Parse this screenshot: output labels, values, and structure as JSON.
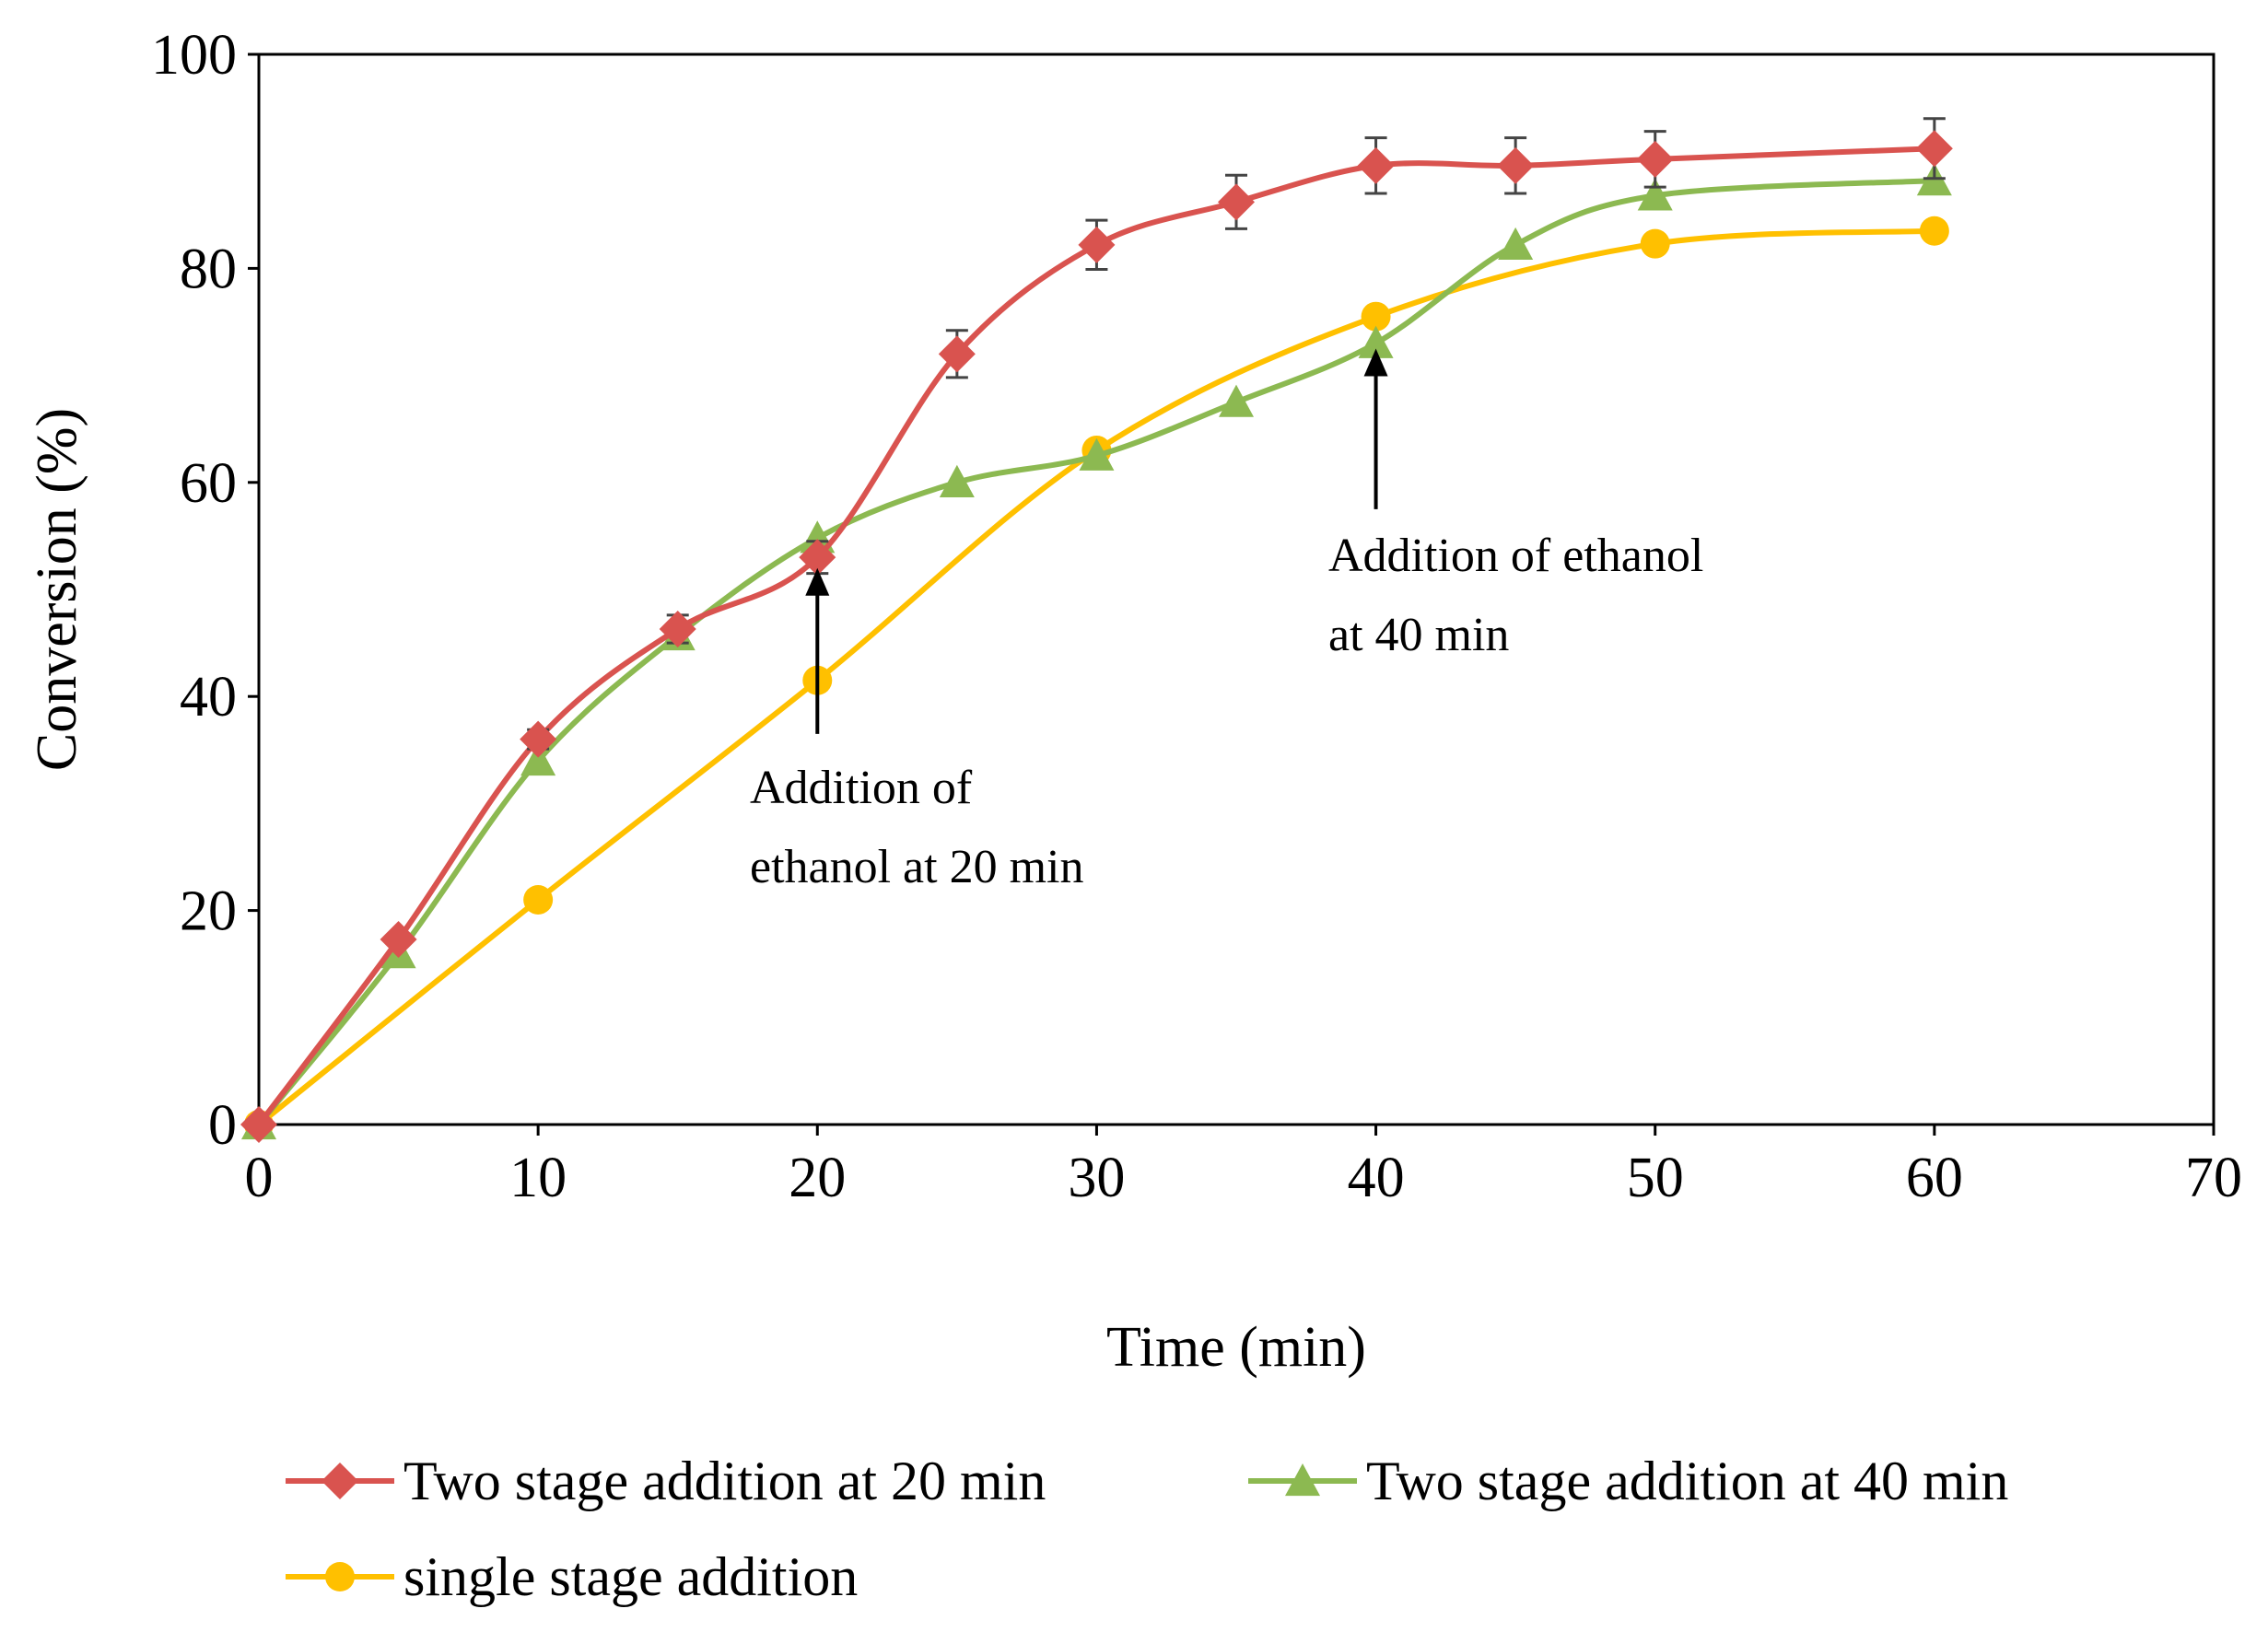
{
  "chart_data": {
    "type": "line",
    "title": "",
    "xlabel": "Time (min)",
    "ylabel": "Conversion (%)",
    "xlim": [
      0,
      70
    ],
    "ylim": [
      0,
      100
    ],
    "xticks": [
      0,
      10,
      20,
      30,
      40,
      50,
      60,
      70
    ],
    "yticks": [
      0,
      20,
      40,
      60,
      80,
      100
    ],
    "grid": false,
    "legend_position": "bottom",
    "series": [
      {
        "name": "Two stage addition at 20 min",
        "color": "#d9534f",
        "marker": "diamond",
        "x": [
          0,
          5,
          10,
          15,
          20,
          25,
          30,
          35,
          40,
          45,
          50,
          60
        ],
        "y": [
          0,
          17.3,
          36,
          46.3,
          53,
          72,
          82.2,
          86.2,
          89.6,
          89.6,
          90.2,
          91.2
        ],
        "error": [
          0,
          0,
          0.9,
          1.3,
          1.5,
          2.2,
          2.3,
          2.5,
          2.6,
          2.6,
          2.6,
          2.8
        ]
      },
      {
        "name": "Two stage addition at 40 min",
        "color": "#8cb951",
        "marker": "triangle",
        "x": [
          0,
          5,
          10,
          15,
          20,
          25,
          30,
          35,
          40,
          45,
          50,
          60
        ],
        "y": [
          0,
          16,
          34,
          45.7,
          54.8,
          60,
          62.5,
          67.5,
          73,
          82.2,
          86.8,
          88.2
        ]
      },
      {
        "name": "single stage addition",
        "color": "#ffc000",
        "marker": "circle",
        "x": [
          0,
          10,
          20,
          30,
          40,
          50,
          60
        ],
        "y": [
          0,
          21,
          41.5,
          63,
          75.5,
          82.3,
          83.5
        ]
      }
    ],
    "annotations": [
      {
        "lines": [
          "Addition of",
          "ethanol at 20 min"
        ],
        "arrow_x": 20,
        "arrow_from_y": 36.5,
        "arrow_to_y": 52
      },
      {
        "lines": [
          "Addition of ethanol",
          "at 40 min"
        ],
        "arrow_x": 40,
        "arrow_from_y": 57.5,
        "arrow_to_y": 72.5
      }
    ]
  }
}
